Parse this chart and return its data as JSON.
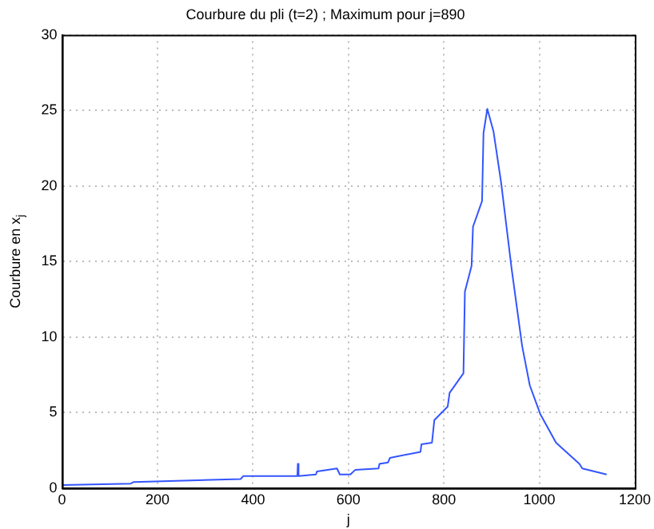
{
  "chart_data": {
    "type": "line",
    "title": "Courbure du pli (t=2) ; Maximum pour j=890",
    "xlabel": "j",
    "ylabel": "Courbure en x$_{j}$",
    "x": [
      0,
      144,
      150,
      374,
      380,
      493,
      494,
      495,
      496,
      532,
      534,
      576,
      582,
      604,
      614,
      663,
      665,
      683,
      687,
      751,
      753,
      775,
      780,
      808,
      812,
      841,
      844,
      858,
      861,
      880,
      883,
      891,
      904,
      920,
      942,
      964,
      980,
      1002,
      1035,
      1084,
      1090,
      1141
    ],
    "series": [
      {
        "color": "#3355ff",
        "values": [
          0.2,
          0.3,
          0.4,
          0.6,
          0.8,
          0.8,
          1.6,
          0.8,
          0.8,
          0.9,
          1.1,
          1.3,
          0.9,
          0.9,
          1.2,
          1.3,
          1.6,
          1.7,
          2.0,
          2.4,
          2.9,
          3.0,
          4.5,
          5.4,
          6.3,
          7.6,
          13.0,
          14.7,
          17.3,
          19.0,
          23.5,
          25.1,
          23.6,
          20.2,
          14.5,
          9.4,
          6.8,
          4.9,
          3.0,
          1.6,
          1.3,
          0.9
        ]
      }
    ],
    "xlim": [
      0,
      1200
    ],
    "xticks": [
      0,
      200,
      400,
      600,
      800,
      1000,
      1200
    ],
    "ylim": [
      0,
      30
    ],
    "yticks": [
      0,
      5,
      10,
      15,
      20,
      25,
      30
    ],
    "grid": true,
    "legend": false,
    "marker": "none",
    "line_style": "solid"
  }
}
